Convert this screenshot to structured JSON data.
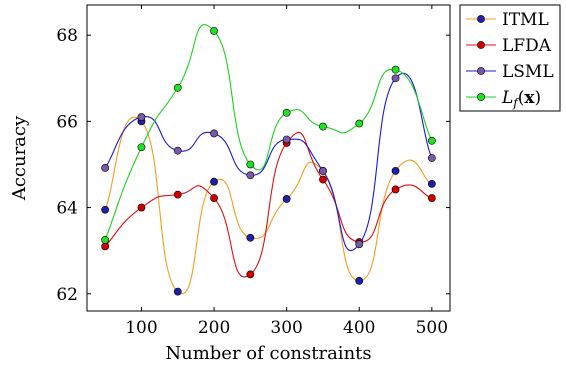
{
  "chart_data": {
    "type": "line",
    "xlabel": "Number of constraints",
    "ylabel": "Accuracy",
    "xlim": [
      25,
      525
    ],
    "ylim": [
      61.6,
      68.7
    ],
    "xticks": [
      100,
      200,
      300,
      400,
      500
    ],
    "yticks": [
      62,
      64,
      66,
      68
    ],
    "x": [
      50,
      100,
      150,
      200,
      250,
      300,
      350,
      400,
      450,
      500
    ],
    "grid": false,
    "legend_position": "outside right, top",
    "series": [
      {
        "name": "ITML",
        "line_color": "#f59c24",
        "marker_color": "#1f1fa8",
        "values": [
          63.95,
          66.0,
          62.05,
          64.6,
          63.3,
          64.2,
          64.85,
          62.3,
          64.85,
          64.55
        ]
      },
      {
        "name": "LFDA",
        "line_color": "#e01010",
        "marker_color": "#d00000",
        "values": [
          63.1,
          64.0,
          64.3,
          64.22,
          62.45,
          65.5,
          64.65,
          63.2,
          64.42,
          64.22
        ]
      },
      {
        "name": "LSML",
        "line_color": "#1a1ad6",
        "marker_color": "#7a5aa8",
        "values": [
          64.92,
          66.1,
          65.32,
          65.72,
          64.75,
          65.58,
          64.85,
          63.15,
          67.0,
          65.15
        ]
      },
      {
        "name": "L_f(x)",
        "name_display": {
          "prefix": "L",
          "sub": "f",
          "open": "(",
          "bold": "x",
          "close": ")"
        },
        "line_color": "#1fd21f",
        "marker_color": "#22e022",
        "values": [
          63.25,
          65.4,
          66.78,
          68.1,
          65.0,
          66.2,
          65.88,
          65.95,
          67.2,
          65.55
        ]
      }
    ]
  }
}
